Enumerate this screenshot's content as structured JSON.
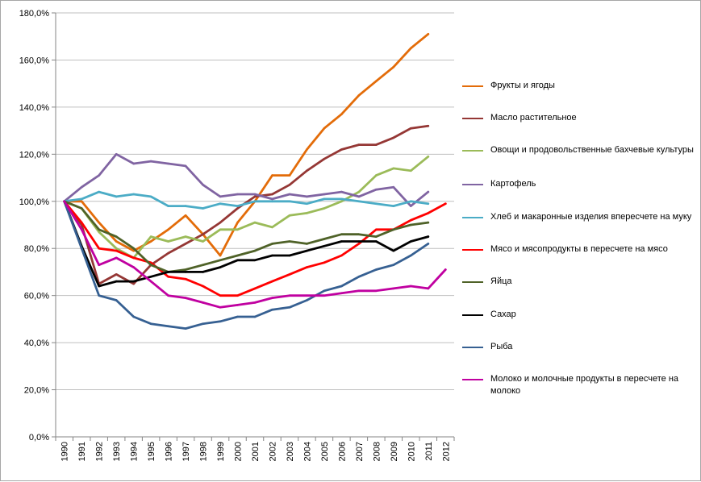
{
  "chart_data": {
    "type": "line",
    "title": "",
    "xlabel": "",
    "ylabel": "",
    "ylim": [
      0,
      180
    ],
    "y_tick_values": [
      0,
      20,
      40,
      60,
      80,
      100,
      120,
      140,
      160,
      180
    ],
    "y_tick_labels": [
      "0,0%",
      "20,0%",
      "40,0%",
      "60,0%",
      "80,0%",
      "100,0%",
      "120,0%",
      "140,0%",
      "160,0%",
      "180,0%"
    ],
    "x": [
      "1990",
      "1991",
      "1992",
      "1993",
      "1994",
      "1995",
      "1996",
      "1997",
      "1998",
      "1999",
      "2000",
      "2001",
      "2002",
      "2003",
      "2004",
      "2005",
      "2006",
      "2007",
      "2008",
      "2009",
      "2010",
      "2011",
      "2012"
    ],
    "grid": {
      "horizontal": true,
      "vertical": false
    },
    "legend_position": "right",
    "series": [
      {
        "name": "Фрукты и ягоды",
        "color": "#e36c09",
        "values": [
          100,
          100,
          91,
          83,
          79,
          83,
          88,
          94,
          86,
          77,
          91,
          100,
          111,
          111,
          122,
          131,
          137,
          145,
          151,
          157,
          165,
          171,
          null
        ]
      },
      {
        "name": "Масло  растительное",
        "color": "#953735",
        "values": [
          100,
          90,
          65,
          69,
          65,
          73,
          78,
          82,
          86,
          91,
          97,
          102,
          103,
          107,
          113,
          118,
          122,
          124,
          124,
          127,
          131,
          132,
          null
        ]
      },
      {
        "name": "Овощи и продовольственные бахчевые культуры",
        "color": "#9bbb59",
        "values": [
          100,
          97,
          87,
          80,
          76,
          85,
          83,
          85,
          83,
          88,
          88,
          91,
          89,
          94,
          95,
          97,
          100,
          104,
          111,
          114,
          113,
          119,
          null
        ]
      },
      {
        "name": "Картофель",
        "color": "#8064a2",
        "values": [
          100,
          106,
          111,
          120,
          116,
          117,
          116,
          115,
          107,
          102,
          103,
          103,
          101,
          103,
          102,
          103,
          104,
          102,
          105,
          106,
          98,
          104,
          null
        ]
      },
      {
        "name": "Хлеб и макаронные изделия впересчете на муку",
        "color": "#4bacc6",
        "values": [
          100,
          101,
          104,
          102,
          103,
          102,
          98,
          98,
          97,
          99,
          98,
          100,
          100,
          100,
          99,
          101,
          101,
          100,
          99,
          98,
          100,
          99,
          null
        ]
      },
      {
        "name": "Мясо и мясопродукты в пересчете на мясо",
        "color": "#ff0000",
        "values": [
          100,
          91,
          80,
          79,
          76,
          74,
          68,
          67,
          64,
          60,
          60,
          63,
          66,
          69,
          72,
          74,
          77,
          82,
          88,
          88,
          92,
          95,
          99
        ]
      },
      {
        "name": "Яйца",
        "color": "#4f6228",
        "values": [
          100,
          97,
          88,
          85,
          80,
          73,
          70,
          71,
          73,
          75,
          77,
          79,
          82,
          83,
          82,
          84,
          86,
          86,
          85,
          88,
          90,
          91,
          null
        ]
      },
      {
        "name": "Сахар",
        "color": "#000000",
        "values": [
          100,
          81,
          64,
          66,
          66,
          68,
          70,
          70,
          70,
          72,
          75,
          75,
          77,
          77,
          79,
          81,
          83,
          83,
          83,
          79,
          83,
          85,
          null
        ]
      },
      {
        "name": "Рыба",
        "color": "#366092",
        "values": [
          100,
          80,
          60,
          58,
          51,
          48,
          47,
          46,
          48,
          49,
          51,
          51,
          54,
          55,
          58,
          62,
          64,
          68,
          71,
          73,
          77,
          82,
          null
        ]
      },
      {
        "name": "Молоко и молочные продукты в пересчете на молоко",
        "color": "#c000a0",
        "values": [
          100,
          88,
          73,
          76,
          72,
          66,
          60,
          59,
          57,
          55,
          56,
          57,
          59,
          60,
          60,
          60,
          61,
          62,
          62,
          63,
          64,
          63,
          71
        ]
      }
    ]
  }
}
